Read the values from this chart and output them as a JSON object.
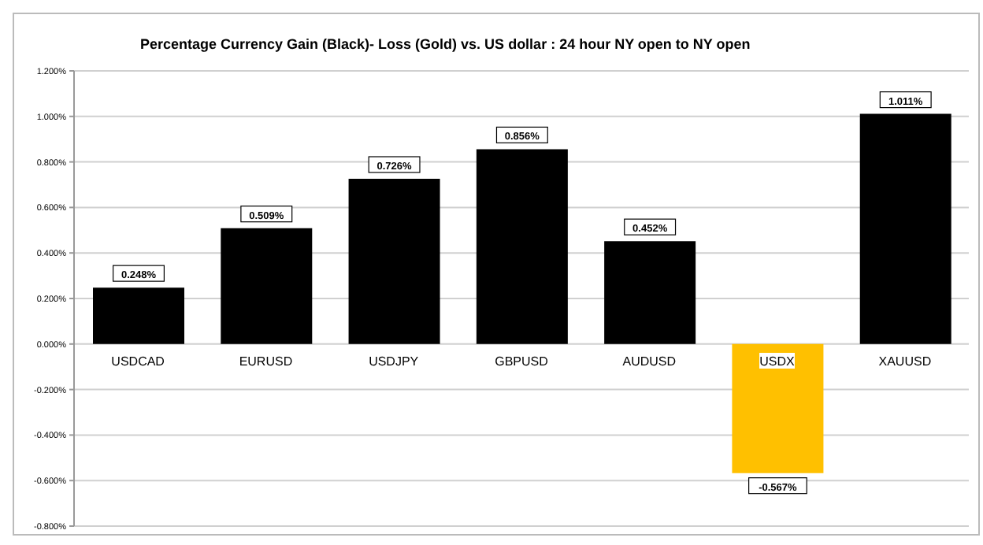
{
  "chart_data": {
    "type": "bar",
    "title": "Percentage Currency  Gain (Black)- Loss (Gold)  vs. US dollar : 24 hour  NY  open to  NY  open",
    "categories": [
      "USDCAD",
      "EURUSD",
      "USDJPY",
      "GBPUSD",
      "AUDUSD",
      "USDX",
      "XAUUSD"
    ],
    "values": [
      0.248,
      0.509,
      0.726,
      0.856,
      0.452,
      -0.567,
      1.011
    ],
    "value_labels": [
      "0.248%",
      "0.509%",
      "0.726%",
      "0.856%",
      "0.452%",
      "-0.567%",
      "1.011%"
    ],
    "colors": [
      "#000000",
      "#000000",
      "#000000",
      "#000000",
      "#000000",
      "#ffc000",
      "#000000"
    ],
    "ylim": [
      -0.8,
      1.2
    ],
    "yticks": [
      {
        "value": -0.8,
        "label": "-0.800%"
      },
      {
        "value": -0.6,
        "label": "-0.600%"
      },
      {
        "value": -0.4,
        "label": "-0.400%"
      },
      {
        "value": -0.2,
        "label": "-0.200%"
      },
      {
        "value": 0,
        "label": "0.000%"
      },
      {
        "value": 0.2,
        "label": "0.200%"
      },
      {
        "value": 0.4,
        "label": "0.400%"
      },
      {
        "value": 0.6,
        "label": "0.600%"
      },
      {
        "value": 0.8,
        "label": "0.800%"
      },
      {
        "value": 1.0,
        "label": "1.000%"
      },
      {
        "value": 1.2,
        "label": "1.200%"
      }
    ],
    "grid": "y"
  }
}
